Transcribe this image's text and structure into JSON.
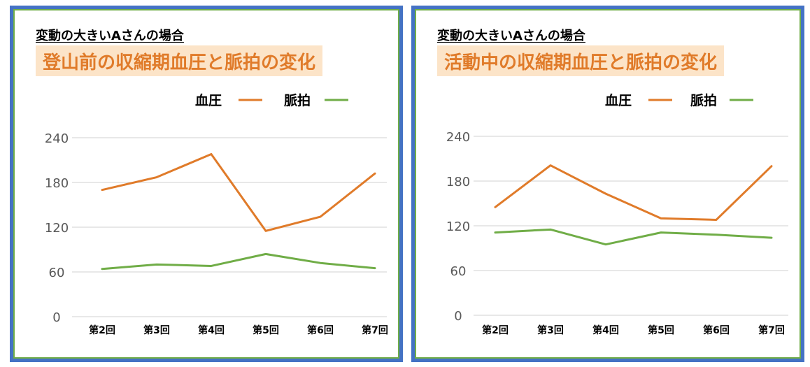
{
  "colors": {
    "frame": "#4472c4",
    "inner_border": "#70ad47",
    "title_bg": "#fce4c8",
    "title_text": "#e07b2a",
    "bp_line": "#e07b2a",
    "pulse_line": "#70ad47",
    "grid": "#d9d9d9"
  },
  "charts": [
    {
      "subtitle": "変動の大きいAさんの場合",
      "title": "登山前の収縮期血圧と脈拍の変化"
    },
    {
      "subtitle": "変動の大きいAさんの場合",
      "title": "活動中の収縮期血圧と脈拍の変化"
    }
  ],
  "chart_data": [
    {
      "type": "line",
      "title": "登山前の収縮期血圧と脈拍の変化",
      "categories": [
        "第2回",
        "第3回",
        "第4回",
        "第5回",
        "第6回",
        "第7回"
      ],
      "series": [
        {
          "name": "血圧",
          "color": "#e07b2a",
          "values": [
            170,
            187,
            218,
            115,
            134,
            192
          ]
        },
        {
          "name": "脈拍",
          "color": "#70ad47",
          "values": [
            64,
            70,
            68,
            84,
            72,
            65
          ]
        }
      ],
      "ylim": [
        0,
        240
      ],
      "yticks": [
        "240",
        "180",
        "120",
        "60",
        "0"
      ],
      "grid": true,
      "legend_position": "top-right"
    },
    {
      "type": "line",
      "title": "活動中の収縮期血圧と脈拍の変化",
      "categories": [
        "第2回",
        "第3回",
        "第4回",
        "第5回",
        "第6回",
        "第7回"
      ],
      "series": [
        {
          "name": "血圧",
          "color": "#e07b2a",
          "values": [
            145,
            201,
            163,
            130,
            128,
            200
          ]
        },
        {
          "name": "脈拍",
          "color": "#70ad47",
          "values": [
            111,
            115,
            95,
            111,
            108,
            104
          ]
        }
      ],
      "ylim": [
        0,
        240
      ],
      "yticks": [
        "240",
        "180",
        "120",
        "60",
        "0"
      ],
      "grid": true,
      "legend_position": "top-right"
    }
  ]
}
